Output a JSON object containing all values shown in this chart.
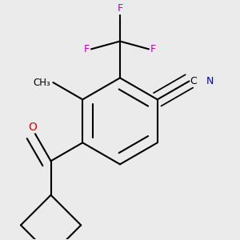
{
  "bg_color": "#ebebeb",
  "bond_color": "#000000",
  "bond_width": 1.5,
  "dbo": 0.018,
  "figsize": [
    3.0,
    3.0
  ],
  "dpi": 100,
  "colors": {
    "O": "#e80000",
    "N": "#0000cc",
    "F": "#bb00bb",
    "C": "#000000"
  }
}
